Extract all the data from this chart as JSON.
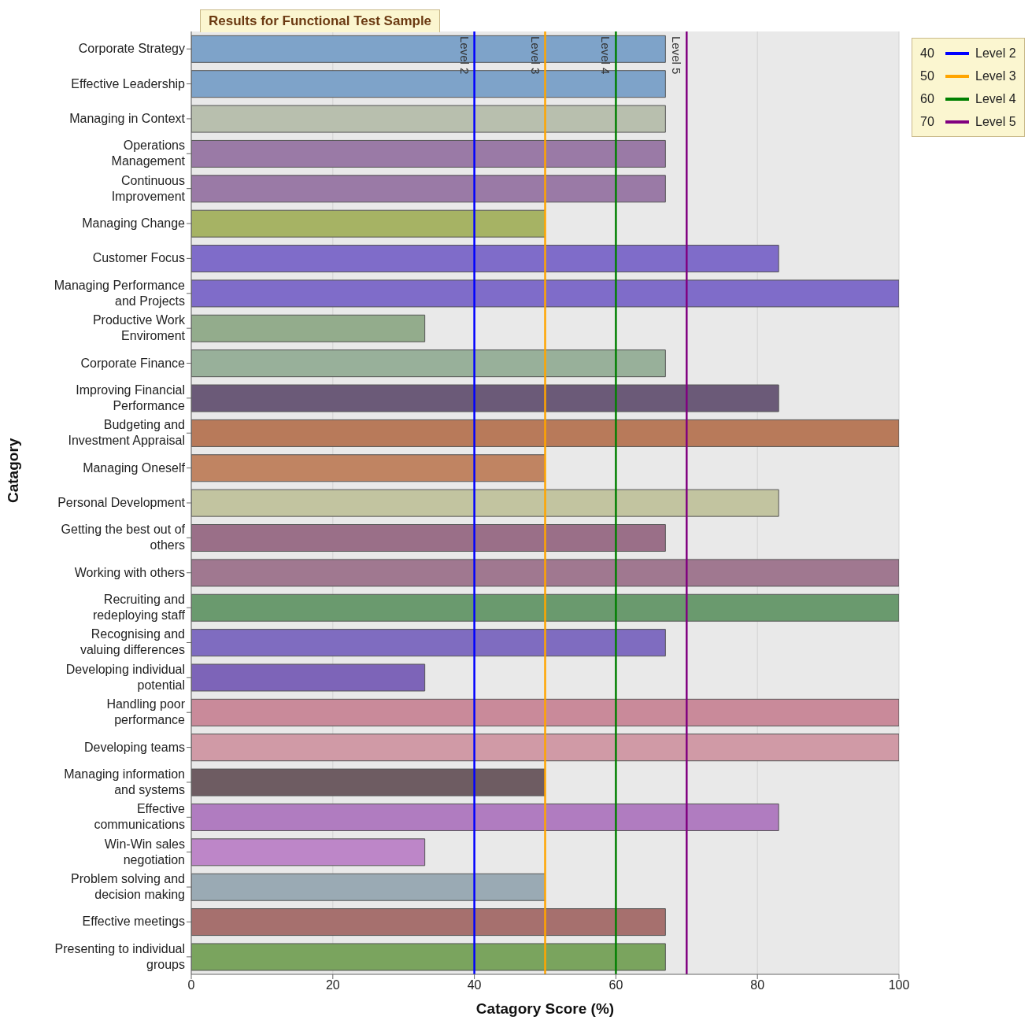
{
  "chart_data": {
    "type": "bar",
    "orientation": "horizontal",
    "title": "Results for Functional Test Sample",
    "xlabel": "Catagory Score (%)",
    "ylabel": "Catagory",
    "categories": [
      "Corporate Strategy",
      "Effective Leadership",
      "Managing in Context",
      "Operations\nManagement",
      "Continuous\nImprovement",
      "Managing Change",
      "Customer Focus",
      "Managing Performance\nand Projects",
      "Productive Work\nEnviroment",
      "Corporate Finance",
      "Improving Financial\nPerformance",
      "Budgeting and\nInvestment Appraisal",
      "Managing Oneself",
      "Personal Development",
      "Getting the best out of\nothers",
      "Working with others",
      "Recruiting and\nredeploying staff",
      "Recognising and\nvaluing differences",
      "Developing individual\npotential",
      "Handling poor\nperformance",
      "Developing teams",
      "Managing information\nand systems",
      "Effective\ncommunications",
      "Win-Win sales\nnegotiation",
      "Problem solving and\ndecision making",
      "Effective meetings",
      "Presenting to individual\ngroups"
    ],
    "values": [
      67,
      67,
      67,
      67,
      67,
      50,
      83,
      100,
      33,
      67,
      83,
      100,
      50,
      83,
      67,
      100,
      100,
      67,
      33,
      100,
      100,
      50,
      83,
      33,
      50,
      67,
      67
    ],
    "colors": [
      "#7ea3c9",
      "#7ea3c9",
      "#b8bfae",
      "#9a7aa6",
      "#9a7aa6",
      "#a6b364",
      "#7f6cc9",
      "#7f6cc9",
      "#93ac8c",
      "#98b09a",
      "#6b5a78",
      "#b87a5a",
      "#c08462",
      "#c2c4a0",
      "#9a6f88",
      "#a07890",
      "#6a9a6e",
      "#7f6cc0",
      "#7d64b8",
      "#c98a9a",
      "#d09aa6",
      "#6e5c62",
      "#b07cc0",
      "#bd86c8",
      "#9aaab4",
      "#a6706e",
      "#7aa45e"
    ],
    "annotations": [
      "40",
      "50",
      "60",
      "70"
    ],
    "xlim": [
      0,
      100
    ],
    "xticks": [
      0,
      20,
      40,
      60,
      80,
      100
    ],
    "grid": "x",
    "legend": "top right",
    "ref_lines": [
      {
        "axis": "x",
        "value": 40,
        "label": "Level 2",
        "color": "#0000ff"
      },
      {
        "axis": "x",
        "value": 50,
        "label": "Level 3",
        "color": "#ffa500"
      },
      {
        "axis": "x",
        "value": 60,
        "label": "Level 4",
        "color": "#008000"
      },
      {
        "axis": "x",
        "value": 70,
        "label": "Level 5",
        "color": "#800080"
      }
    ]
  }
}
